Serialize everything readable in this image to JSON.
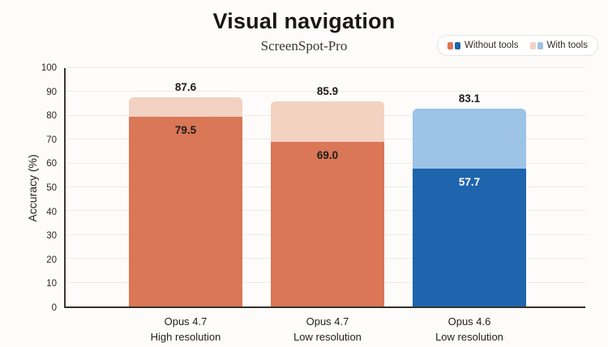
{
  "header": {
    "title": "Visual navigation",
    "subtitle": "ScreenSpot-Pro"
  },
  "legend": {
    "position": "top-right",
    "items": [
      {
        "label": "Without tools",
        "swatches": [
          "#d97757",
          "#1e65ae"
        ]
      },
      {
        "label": "With tools",
        "swatches": [
          "#f4d2c2",
          "#9dc3e6"
        ]
      }
    ]
  },
  "chart_data": {
    "type": "bar",
    "variant": "overlay-stacked",
    "title": "Visual navigation",
    "subtitle": "ScreenSpot-Pro",
    "xlabel": "",
    "ylabel": "Accuracy (%)",
    "ylim": [
      0,
      100
    ],
    "yticks": [
      0,
      10,
      20,
      30,
      40,
      50,
      60,
      70,
      80,
      90,
      100
    ],
    "grid": "horizontal",
    "legend_position": "top-right",
    "categories": [
      "Opus 4.7 High resolution",
      "Opus 4.7 Low resolution",
      "Opus 4.6 Low resolution"
    ],
    "series": [
      {
        "name": "Without tools",
        "values": [
          79.5,
          69.0,
          57.7
        ]
      },
      {
        "name": "With tools",
        "values": [
          87.6,
          85.9,
          83.1
        ]
      }
    ],
    "bars": [
      {
        "category_lines": [
          "Opus 4.7",
          "High resolution"
        ],
        "with_tools": 87.6,
        "without_tools": 79.5,
        "with_tools_label": "87.6",
        "without_tools_label": "79.5",
        "solid_color": "#d97757",
        "light_color": "#f4d2c2",
        "inner_label_color": "#1d1c19"
      },
      {
        "category_lines": [
          "Opus 4.7",
          "Low resolution"
        ],
        "with_tools": 85.9,
        "without_tools": 69.0,
        "with_tools_label": "85.9",
        "without_tools_label": "69.0",
        "solid_color": "#d97757",
        "light_color": "#f4d2c2",
        "inner_label_color": "#1d1c19"
      },
      {
        "category_lines": [
          "Opus 4.6",
          "Low resolution"
        ],
        "with_tools": 83.1,
        "without_tools": 57.7,
        "with_tools_label": "83.1",
        "without_tools_label": "57.7",
        "solid_color": "#1e65ae",
        "light_color": "#9dc3e6",
        "inner_label_color": "#ffffff"
      }
    ]
  }
}
